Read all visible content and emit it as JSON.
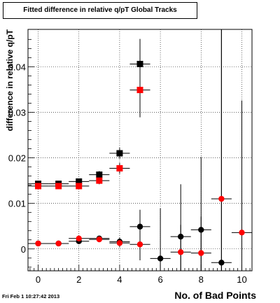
{
  "chart_data": {
    "type": "scatter",
    "title": "Fitted difference in relative q/pT  Global Tracks",
    "xlabel": "No. of Bad Points",
    "ylabel": "difference in relative q/pT",
    "xlim": [
      -0.5,
      10.5
    ],
    "ylim": [
      -0.0048,
      0.0482
    ],
    "x_ticks": [
      0,
      2,
      4,
      6,
      8,
      10
    ],
    "x_tick_labels": [
      "0",
      "2",
      "4",
      "6",
      "8",
      "10"
    ],
    "y_ticks": [
      0,
      0.01,
      0.02,
      0.03,
      0.04
    ],
    "y_tick_labels": [
      "0",
      "0.01",
      "0.02",
      "0.03",
      "0.04"
    ],
    "grid": true,
    "legend": "none",
    "series": [
      {
        "marker": "square",
        "color": "#000000",
        "x": [
          0,
          1,
          2,
          3,
          4,
          5
        ],
        "y": [
          0.0143,
          0.0143,
          0.0148,
          0.0163,
          0.021,
          0.0406
        ],
        "yerr": [
          0.0004,
          0.0004,
          0.0005,
          0.0008,
          0.0012,
          0.0055
        ],
        "xerr": [
          0.5,
          0.5,
          0.5,
          0.5,
          0.5,
          0.5
        ]
      },
      {
        "marker": "square",
        "color": "#ff0000",
        "x": [
          0,
          1,
          2,
          3,
          4,
          5
        ],
        "y": [
          0.0138,
          0.0138,
          0.0138,
          0.015,
          0.0177,
          0.0349
        ],
        "yerr": [
          0.0004,
          0.0004,
          0.0005,
          0.0008,
          0.0012,
          0.006
        ],
        "xerr": [
          0.5,
          0.5,
          0.5,
          0.5,
          0.5,
          0.5
        ]
      },
      {
        "marker": "circle",
        "color": "#000000",
        "x": [
          0,
          1,
          2,
          3,
          4,
          5,
          6,
          7,
          8,
          9
        ],
        "y": [
          0.0012,
          0.0012,
          0.0017,
          0.0023,
          0.0016,
          0.0049,
          -0.0021,
          0.0027,
          0.0042,
          -0.003
        ],
        "yerr": [
          0.0003,
          0.0003,
          0.0004,
          0.0006,
          0.0009,
          0.0037,
          0.011,
          0.0115,
          0.016,
          0.052
        ],
        "xerr": [
          0.5,
          0.5,
          0.5,
          0.5,
          0.5,
          0.5,
          0.5,
          0.5,
          0.5,
          0.5
        ]
      },
      {
        "marker": "circle",
        "color": "#ff0000",
        "x": [
          0,
          1,
          2,
          3,
          4,
          5,
          7,
          8,
          9,
          10
        ],
        "y": [
          0.0012,
          0.0012,
          0.0023,
          0.0021,
          0.0013,
          0.001,
          -0.0007,
          -0.0009,
          0.011,
          0.0036
        ],
        "yerr": [
          0.0003,
          0.0003,
          0.0004,
          0.0006,
          0.0009,
          0.0035,
          0.006,
          0.008,
          0.04,
          0.029
        ],
        "xerr": [
          0.5,
          0.5,
          0.5,
          0.5,
          0.5,
          0.5,
          0.5,
          0.5,
          0.5,
          0.5
        ]
      }
    ]
  },
  "footer": {
    "timestamp": "Fri Feb  1 10:27:42 2013"
  }
}
